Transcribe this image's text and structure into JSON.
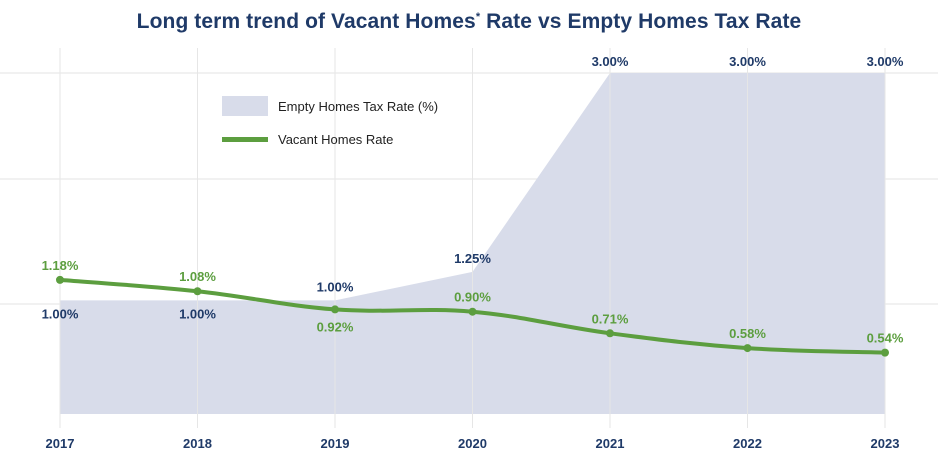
{
  "chart_data": {
    "type": "area+line",
    "title": "Long term trend of Vacant Homes",
    "title_mark": "*",
    "title_suffix": " Rate vs Empty Homes Tax Rate",
    "categories": [
      "2017",
      "2018",
      "2019",
      "2020",
      "2021",
      "2022",
      "2023"
    ],
    "ylim": [
      0,
      3.0
    ],
    "grid": true,
    "legend_position": "top-left",
    "series": [
      {
        "name": "Empty Homes Tax Rate (%)",
        "kind": "area",
        "color": "#d8dcea",
        "values": [
          1.0,
          1.0,
          1.0,
          1.25,
          3.0,
          3.0,
          3.0
        ],
        "labels": [
          "1.00%",
          "1.00%",
          "1.00%",
          "1.25%",
          "3.00%",
          "3.00%",
          "3.00%"
        ]
      },
      {
        "name": "Vacant Homes Rate",
        "kind": "line",
        "color": "#5c9e3f",
        "values": [
          1.18,
          1.08,
          0.92,
          0.9,
          0.71,
          0.58,
          0.54
        ],
        "labels": [
          "1.18%",
          "1.08%",
          "0.92%",
          "0.90%",
          "0.71%",
          "0.58%",
          "0.54%"
        ]
      }
    ]
  }
}
